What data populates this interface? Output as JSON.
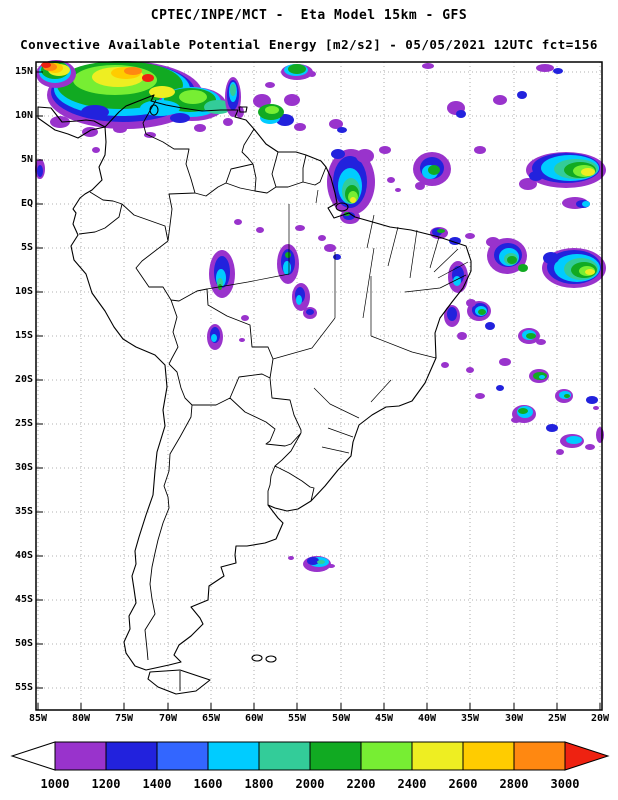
{
  "header": {
    "line1": "CPTEC/INPE/MCT -  Eta Model 15km - GFS",
    "line2": "Convective Available Potential Energy [m2/s2] - 05/05/2021 12UTC fct=156"
  },
  "map": {
    "lat_labels": [
      "15N",
      "10N",
      "5N",
      "EQ",
      "5S",
      "10S",
      "15S",
      "20S",
      "25S",
      "30S",
      "35S",
      "40S",
      "45S",
      "50S",
      "55S"
    ],
    "lon_labels": [
      "85W",
      "80W",
      "75W",
      "70W",
      "65W",
      "60W",
      "55W",
      "50W",
      "45W",
      "40W",
      "35W",
      "30W",
      "25W",
      "20W"
    ]
  },
  "colorbar": {
    "tick_labels": [
      "1000",
      "1200",
      "1400",
      "1600",
      "1800",
      "2000",
      "2200",
      "2400",
      "2600",
      "2800",
      "3000"
    ]
  },
  "palette": {
    "white": "#FFFFFF",
    "purple": "#9933CC",
    "blue": "#2222DD",
    "blue2": "#3366FF",
    "cyan": "#00CCFF",
    "teal": "#33CC99",
    "green": "#11AA22",
    "lightgreen": "#77EE33",
    "yellow": "#EEEE22",
    "amber": "#FFCC00",
    "orange": "#FF8811",
    "red": "#EE2211",
    "line": "#000000",
    "grid": "#999999"
  },
  "chart_data": {
    "type": "heatmap",
    "title": "Convective Available Potential Energy [m2/s2]",
    "institution": "CPTEC/INPE/MCT",
    "model": "Eta Model 15km - GFS",
    "valid": "05/05/2021 12UTC",
    "forecast_hour": 156,
    "units": "m2/s2",
    "lat_axis": {
      "top": "15N",
      "bottom": "55S",
      "interval_deg": 5
    },
    "lon_axis": {
      "left": "85W",
      "right": "20W",
      "interval_deg": 5
    },
    "grid": "dotted 5-degree graticule",
    "color_scale": {
      "ticks": [
        1000,
        1200,
        1400,
        1600,
        1800,
        2000,
        2200,
        2400,
        2600,
        2800,
        3000
      ],
      "segment_colors_low_to_high": [
        "purple",
        "blue",
        "blue2",
        "cyan",
        "teal",
        "green",
        "lightgreen",
        "yellow",
        "amber",
        "orange"
      ],
      "below_min_arrow": "white",
      "above_max_arrow": "red"
    },
    "observed_maxima_regions": [
      "northern Colombia / Venezuela / Caribbean coast (10N-15N)",
      "Atlantic ITCZ band near 5N from 52W to 20W",
      "scattered cells over central Amazonia and northeast Brazil",
      "tropical South Atlantic clusters 5S-25S",
      "small cluster near 40S 55W"
    ]
  }
}
